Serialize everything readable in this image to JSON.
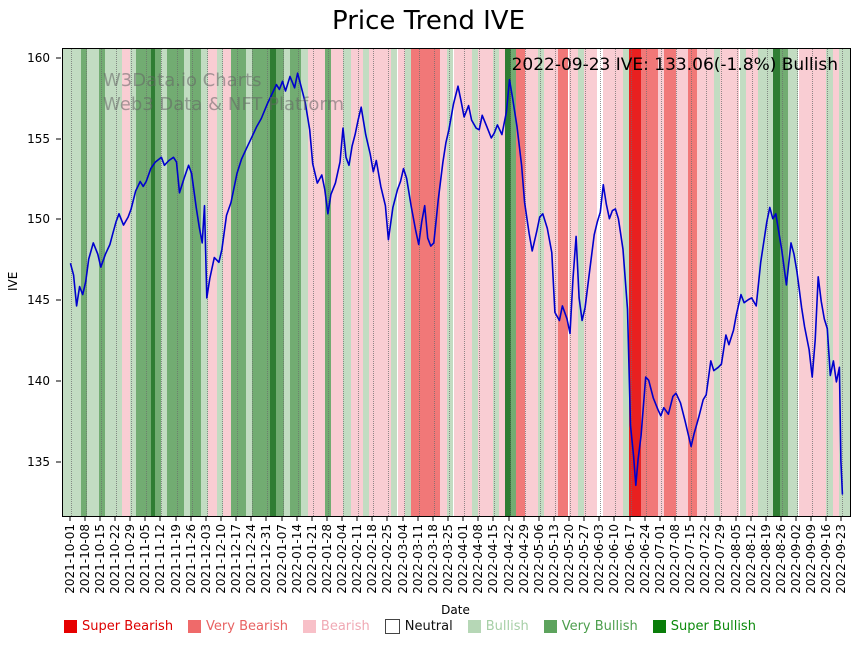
{
  "page": {
    "title": "Price Trend IVE",
    "annotation": "2022-09-23 IVE: 133.06(-1.8%) Bullish",
    "watermark_line1": "W3Data.io Charts",
    "watermark_line2": "Web3 Data & NFT Platform"
  },
  "chart_data": {
    "type": "line",
    "title": "Price Trend IVE",
    "xlabel": "Date",
    "ylabel": "IVE",
    "ylim": [
      131.7,
      160.6
    ],
    "yticks": [
      135,
      140,
      145,
      150,
      155,
      160
    ],
    "x_tick_labels": [
      "2021-10-01",
      "2021-10-08",
      "2021-10-15",
      "2021-10-22",
      "2021-10-29",
      "2021-11-05",
      "2021-11-12",
      "2021-11-19",
      "2021-11-26",
      "2021-12-03",
      "2021-12-10",
      "2021-12-17",
      "2021-12-24",
      "2021-12-31",
      "2022-01-07",
      "2022-01-14",
      "2022-01-21",
      "2022-01-28",
      "2022-02-04",
      "2022-02-11",
      "2022-02-18",
      "2022-02-25",
      "2022-03-04",
      "2022-03-11",
      "2022-03-18",
      "2022-03-25",
      "2022-04-01",
      "2022-04-08",
      "2022-04-15",
      "2022-04-22",
      "2022-04-29",
      "2022-05-06",
      "2022-05-13",
      "2022-05-20",
      "2022-05-27",
      "2022-06-03",
      "2022-06-10",
      "2022-06-17",
      "2022-06-24",
      "2022-07-01",
      "2022-07-08",
      "2022-07-15",
      "2022-07-22",
      "2022-07-29",
      "2022-08-05",
      "2022-08-12",
      "2022-08-19",
      "2022-08-26",
      "2022-09-02",
      "2022-09-09",
      "2022-09-16",
      "2022-09-23"
    ],
    "grid": "vertical-dotted",
    "legend_position": "bottom",
    "last_point": {
      "date": "2022-09-23",
      "value": 133.06,
      "change_pct": -1.8,
      "sentiment": "Bullish"
    },
    "line": {
      "name": "IVE",
      "color": "#0000cd",
      "points": [
        [
          0,
          147.3
        ],
        [
          0.2,
          146.6
        ],
        [
          0.4,
          144.7
        ],
        [
          0.6,
          145.9
        ],
        [
          0.8,
          145.4
        ],
        [
          1,
          146.2
        ],
        [
          1.2,
          147.6
        ],
        [
          1.5,
          148.6
        ],
        [
          1.8,
          147.9
        ],
        [
          2,
          147.1
        ],
        [
          2.3,
          147.9
        ],
        [
          2.6,
          148.5
        ],
        [
          2.8,
          149.2
        ],
        [
          3,
          149.9
        ],
        [
          3.2,
          150.4
        ],
        [
          3.5,
          149.7
        ],
        [
          3.8,
          150.2
        ],
        [
          4,
          150.7
        ],
        [
          4.3,
          151.8
        ],
        [
          4.6,
          152.4
        ],
        [
          4.8,
          152.1
        ],
        [
          5,
          152.4
        ],
        [
          5.3,
          153.2
        ],
        [
          5.6,
          153.6
        ],
        [
          6,
          153.9
        ],
        [
          6.2,
          153.4
        ],
        [
          6.5,
          153.7
        ],
        [
          6.8,
          153.9
        ],
        [
          7,
          153.6
        ],
        [
          7.2,
          151.7
        ],
        [
          7.5,
          152.6
        ],
        [
          7.8,
          153.4
        ],
        [
          8,
          152.9
        ],
        [
          8.3,
          150.8
        ],
        [
          8.5,
          149.6
        ],
        [
          8.7,
          148.6
        ],
        [
          8.85,
          150.9
        ],
        [
          9,
          145.2
        ],
        [
          9.2,
          146.4
        ],
        [
          9.5,
          147.7
        ],
        [
          9.8,
          147.4
        ],
        [
          10,
          148.2
        ],
        [
          10.3,
          150.3
        ],
        [
          10.6,
          151.1
        ],
        [
          11,
          152.9
        ],
        [
          11.3,
          153.8
        ],
        [
          11.6,
          154.4
        ],
        [
          12,
          155.2
        ],
        [
          12.3,
          155.8
        ],
        [
          12.6,
          156.3
        ],
        [
          13,
          157.2
        ],
        [
          13.3,
          157.8
        ],
        [
          13.6,
          158.4
        ],
        [
          13.8,
          158.1
        ],
        [
          14,
          158.6
        ],
        [
          14.2,
          158
        ],
        [
          14.5,
          158.9
        ],
        [
          14.8,
          158.2
        ],
        [
          15,
          159.1
        ],
        [
          15.2,
          158.4
        ],
        [
          15.5,
          157.3
        ],
        [
          15.8,
          155.6
        ],
        [
          16,
          153.5
        ],
        [
          16.3,
          152.3
        ],
        [
          16.6,
          152.8
        ],
        [
          16.8,
          151.9
        ],
        [
          17,
          150.4
        ],
        [
          17.2,
          151.6
        ],
        [
          17.5,
          152.3
        ],
        [
          17.8,
          153.6
        ],
        [
          18,
          155.7
        ],
        [
          18.2,
          153.9
        ],
        [
          18.4,
          153.4
        ],
        [
          18.6,
          154.6
        ],
        [
          18.8,
          155.3
        ],
        [
          19,
          156.2
        ],
        [
          19.2,
          157
        ],
        [
          19.5,
          155.3
        ],
        [
          19.8,
          154.1
        ],
        [
          20,
          153
        ],
        [
          20.2,
          153.7
        ],
        [
          20.5,
          152.1
        ],
        [
          20.8,
          150.9
        ],
        [
          21,
          148.8
        ],
        [
          21.3,
          150.8
        ],
        [
          21.6,
          151.9
        ],
        [
          21.8,
          152.4
        ],
        [
          22,
          153.2
        ],
        [
          22.2,
          152.6
        ],
        [
          22.5,
          150.9
        ],
        [
          22.8,
          149.4
        ],
        [
          23,
          148.5
        ],
        [
          23.2,
          149.9
        ],
        [
          23.4,
          150.9
        ],
        [
          23.6,
          148.9
        ],
        [
          23.8,
          148.4
        ],
        [
          24,
          148.6
        ],
        [
          24.3,
          151.3
        ],
        [
          24.6,
          153.6
        ],
        [
          24.8,
          154.8
        ],
        [
          25,
          155.6
        ],
        [
          25.3,
          157.2
        ],
        [
          25.6,
          158.3
        ],
        [
          25.8,
          157.4
        ],
        [
          26,
          156.4
        ],
        [
          26.3,
          157.1
        ],
        [
          26.5,
          156.2
        ],
        [
          26.8,
          155.7
        ],
        [
          27,
          155.6
        ],
        [
          27.2,
          156.5
        ],
        [
          27.5,
          155.8
        ],
        [
          27.8,
          155.1
        ],
        [
          28,
          155.4
        ],
        [
          28.2,
          155.9
        ],
        [
          28.5,
          155.3
        ],
        [
          28.8,
          156.7
        ],
        [
          29,
          158.7
        ],
        [
          29.2,
          157.6
        ],
        [
          29.5,
          155.8
        ],
        [
          29.8,
          153.4
        ],
        [
          30,
          151.1
        ],
        [
          30.3,
          149.2
        ],
        [
          30.5,
          148.1
        ],
        [
          30.8,
          149.3
        ],
        [
          31,
          150.2
        ],
        [
          31.2,
          150.4
        ],
        [
          31.5,
          149.5
        ],
        [
          31.8,
          148
        ],
        [
          32,
          144.3
        ],
        [
          32.3,
          143.8
        ],
        [
          32.5,
          144.7
        ],
        [
          32.8,
          143.9
        ],
        [
          33,
          143
        ],
        [
          33.2,
          146.4
        ],
        [
          33.4,
          149
        ],
        [
          33.6,
          145.2
        ],
        [
          33.8,
          143.8
        ],
        [
          34,
          144.6
        ],
        [
          34.3,
          146.9
        ],
        [
          34.6,
          149.1
        ],
        [
          34.8,
          149.9
        ],
        [
          35,
          150.5
        ],
        [
          35.2,
          152.2
        ],
        [
          35.4,
          151
        ],
        [
          35.6,
          150.1
        ],
        [
          35.8,
          150.6
        ],
        [
          36,
          150.7
        ],
        [
          36.2,
          150.1
        ],
        [
          36.5,
          148.2
        ],
        [
          36.8,
          144.5
        ],
        [
          37,
          137.3
        ],
        [
          37.2,
          135.4
        ],
        [
          37.35,
          133.6
        ],
        [
          37.5,
          135.2
        ],
        [
          37.7,
          136.7
        ],
        [
          38,
          140.3
        ],
        [
          38.2,
          140.1
        ],
        [
          38.5,
          139
        ],
        [
          38.8,
          138.3
        ],
        [
          39,
          137.9
        ],
        [
          39.2,
          138.4
        ],
        [
          39.5,
          138
        ],
        [
          39.8,
          139.1
        ],
        [
          40,
          139.3
        ],
        [
          40.3,
          138.7
        ],
        [
          40.6,
          137.6
        ],
        [
          41,
          136
        ],
        [
          41.2,
          136.8
        ],
        [
          41.5,
          137.8
        ],
        [
          41.8,
          138.9
        ],
        [
          42,
          139.2
        ],
        [
          42.3,
          141.3
        ],
        [
          42.5,
          140.7
        ],
        [
          42.8,
          140.9
        ],
        [
          43,
          141.1
        ],
        [
          43.3,
          142.9
        ],
        [
          43.5,
          142.3
        ],
        [
          43.8,
          143.2
        ],
        [
          44,
          144.2
        ],
        [
          44.3,
          145.4
        ],
        [
          44.5,
          144.9
        ],
        [
          44.8,
          145.1
        ],
        [
          45,
          145.2
        ],
        [
          45.3,
          144.7
        ],
        [
          45.6,
          147.4
        ],
        [
          46,
          149.9
        ],
        [
          46.2,
          150.8
        ],
        [
          46.4,
          150.1
        ],
        [
          46.6,
          150.4
        ],
        [
          47,
          148.1
        ],
        [
          47.3,
          146
        ],
        [
          47.6,
          148.6
        ],
        [
          47.8,
          147.9
        ],
        [
          48,
          146.8
        ],
        [
          48.3,
          144.6
        ],
        [
          48.5,
          143.4
        ],
        [
          48.8,
          142
        ],
        [
          49,
          140.3
        ],
        [
          49.2,
          142.6
        ],
        [
          49.4,
          146.5
        ],
        [
          49.6,
          145
        ],
        [
          49.8,
          143.9
        ],
        [
          50,
          143.3
        ],
        [
          50.2,
          140.4
        ],
        [
          50.4,
          141.3
        ],
        [
          50.6,
          140
        ],
        [
          50.8,
          140.9
        ],
        [
          50.9,
          135.1
        ],
        [
          51,
          133.06
        ]
      ]
    },
    "sentiment_colors": {
      "super-bearish": "#e82020",
      "very-bearish": "#f17878",
      "bearish": "#f9cdd3",
      "neutral": "#ffffff",
      "bullish": "#c2dcc2",
      "very-bullish": "#72ac72",
      "super-bullish": "#2f7d33"
    },
    "background_bands": [
      [
        -0.5,
        0.7,
        "bullish"
      ],
      [
        0.7,
        1.1,
        "very-bullish"
      ],
      [
        1.1,
        1.9,
        "bullish"
      ],
      [
        1.9,
        2.3,
        "very-bullish"
      ],
      [
        2.3,
        3.4,
        "bullish"
      ],
      [
        3.4,
        3.9,
        "bearish"
      ],
      [
        3.9,
        4.3,
        "bullish"
      ],
      [
        4.3,
        5.3,
        "very-bullish"
      ],
      [
        5.3,
        5.6,
        "super-bullish"
      ],
      [
        5.6,
        6,
        "very-bullish"
      ],
      [
        6,
        6.4,
        "bullish"
      ],
      [
        6.4,
        7.5,
        "very-bullish"
      ],
      [
        7.5,
        7.9,
        "bullish"
      ],
      [
        7.9,
        8.6,
        "very-bullish"
      ],
      [
        8.6,
        9.1,
        "bullish"
      ],
      [
        9.1,
        9.7,
        "bearish"
      ],
      [
        9.7,
        10.1,
        "bullish"
      ],
      [
        10.1,
        10.6,
        "bearish"
      ],
      [
        10.6,
        11.6,
        "very-bullish"
      ],
      [
        11.6,
        12,
        "bullish"
      ],
      [
        12,
        13.2,
        "very-bullish"
      ],
      [
        13.2,
        13.6,
        "super-bullish"
      ],
      [
        13.6,
        14.1,
        "very-bullish"
      ],
      [
        14.1,
        14.5,
        "bullish"
      ],
      [
        14.5,
        15.2,
        "very-bullish"
      ],
      [
        15.2,
        15.7,
        "bullish"
      ],
      [
        15.7,
        16.8,
        "bearish"
      ],
      [
        16.8,
        17.2,
        "very-bullish"
      ],
      [
        17.2,
        18,
        "bearish"
      ],
      [
        18,
        18.5,
        "bullish"
      ],
      [
        18.5,
        19.3,
        "bearish"
      ],
      [
        19.3,
        19.7,
        "bullish"
      ],
      [
        19.7,
        21.2,
        "bearish"
      ],
      [
        21.2,
        21.6,
        "bullish"
      ],
      [
        21.6,
        22.1,
        "bearish"
      ],
      [
        22.1,
        22.5,
        "bullish"
      ],
      [
        22.5,
        24.4,
        "very-bearish"
      ],
      [
        24.4,
        24.9,
        "bearish"
      ],
      [
        24.9,
        25.3,
        "bullish"
      ],
      [
        25.3,
        26.5,
        "bearish"
      ],
      [
        26.5,
        26.9,
        "bullish"
      ],
      [
        26.9,
        27.9,
        "bearish"
      ],
      [
        27.9,
        28.3,
        "bullish"
      ],
      [
        28.3,
        28.7,
        "bearish"
      ],
      [
        28.7,
        29.1,
        "super-bullish"
      ],
      [
        29.1,
        29.4,
        "very-bullish"
      ],
      [
        29.4,
        30,
        "very-bearish"
      ],
      [
        30,
        30.9,
        "bearish"
      ],
      [
        30.9,
        31.3,
        "bullish"
      ],
      [
        31.3,
        32.2,
        "bearish"
      ],
      [
        32.2,
        32.9,
        "very-bearish"
      ],
      [
        32.9,
        33.5,
        "bearish"
      ],
      [
        33.5,
        33.9,
        "bullish"
      ],
      [
        33.9,
        34.8,
        "bearish"
      ],
      [
        34.8,
        35.2,
        "neutral"
      ],
      [
        35.2,
        36.5,
        "bearish"
      ],
      [
        36.5,
        36.9,
        "bullish"
      ],
      [
        36.9,
        37.7,
        "super-bearish"
      ],
      [
        37.7,
        38.8,
        "very-bearish"
      ],
      [
        38.8,
        39.2,
        "bearish"
      ],
      [
        39.2,
        40,
        "very-bearish"
      ],
      [
        40,
        40.8,
        "bearish"
      ],
      [
        40.8,
        41.4,
        "very-bearish"
      ],
      [
        41.4,
        42.5,
        "bearish"
      ],
      [
        42.5,
        42.9,
        "bullish"
      ],
      [
        42.9,
        44.2,
        "bearish"
      ],
      [
        44.2,
        44.6,
        "bullish"
      ],
      [
        44.6,
        45.4,
        "bearish"
      ],
      [
        45.4,
        46.4,
        "bullish"
      ],
      [
        46.4,
        46.9,
        "super-bullish"
      ],
      [
        46.9,
        47.4,
        "very-bullish"
      ],
      [
        47.4,
        48.1,
        "bullish"
      ],
      [
        48.1,
        49.9,
        "bearish"
      ],
      [
        49.9,
        50.4,
        "bullish"
      ],
      [
        50.4,
        50.8,
        "bearish"
      ],
      [
        50.8,
        51.5,
        "bullish"
      ]
    ],
    "legend": [
      {
        "label": "Super Bearish",
        "level": "super-bearish",
        "swatch": "#e60000",
        "text_color": "#dd0000"
      },
      {
        "label": "Very Bearish",
        "level": "very-bearish",
        "swatch": "#ef6a6a",
        "text_color": "#e86262"
      },
      {
        "label": "Bearish",
        "level": "bearish",
        "swatch": "#f8c0c8",
        "text_color": "#f0a9b4"
      },
      {
        "label": "Neutral",
        "level": "neutral",
        "swatch": "#ffffff",
        "text_color": "#111111"
      },
      {
        "label": "Bullish",
        "level": "bullish",
        "swatch": "#b6d7b6",
        "text_color": "#a6cfa6"
      },
      {
        "label": "Very Bullish",
        "level": "very-bullish",
        "swatch": "#5da35d",
        "text_color": "#4d9e4d"
      },
      {
        "label": "Super Bullish",
        "level": "super-bullish",
        "swatch": "#0a7d0a",
        "text_color": "#0c8a0c"
      }
    ]
  }
}
